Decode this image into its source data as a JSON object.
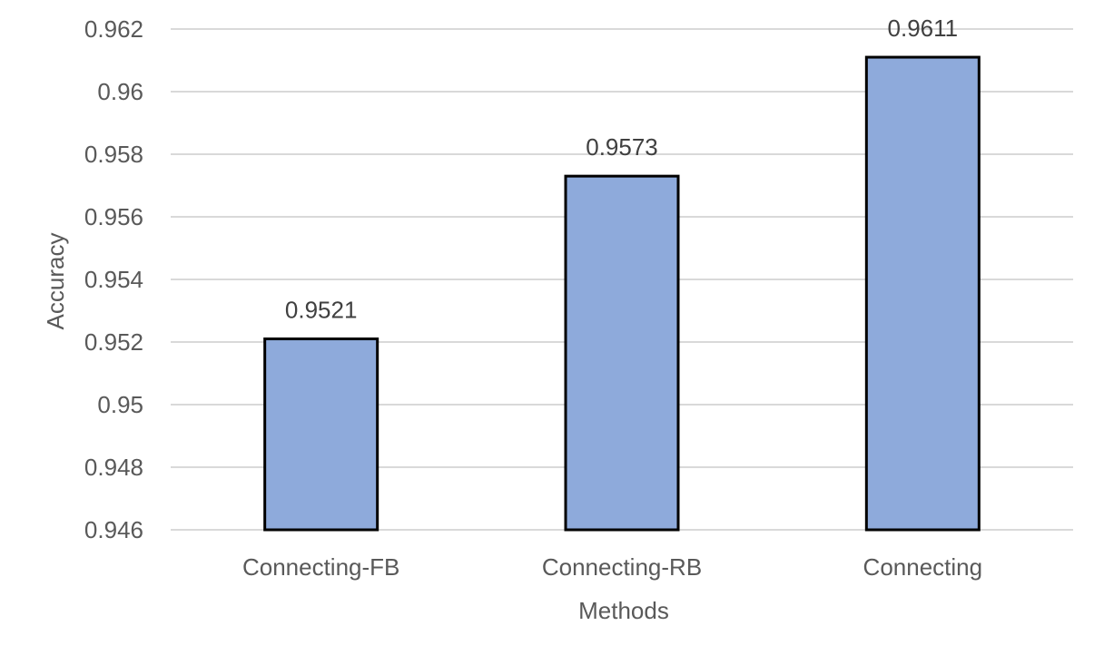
{
  "chart_data": {
    "type": "bar",
    "categories": [
      "Connecting-FB",
      "Connecting-RB",
      "Connecting"
    ],
    "values": [
      0.9521,
      0.9573,
      0.9611
    ],
    "value_labels": [
      "0.9521",
      "0.9573",
      "0.9611"
    ],
    "xlabel": "Methods",
    "ylabel": "Accuracy",
    "ylim": [
      0.946,
      0.962
    ],
    "yticks": [
      0.946,
      0.948,
      0.95,
      0.952,
      0.954,
      0.956,
      0.958,
      0.96,
      0.962
    ],
    "ytick_labels": [
      "0.946",
      "0.948",
      "0.95",
      "0.952",
      "0.954",
      "0.956",
      "0.958",
      "0.96",
      "0.962"
    ],
    "grid": true,
    "legend": "none",
    "colors": {
      "bar_fill": "#8eaadb",
      "bar_stroke": "#000000",
      "grid": "#d9d9d9",
      "text": "#595959"
    }
  }
}
